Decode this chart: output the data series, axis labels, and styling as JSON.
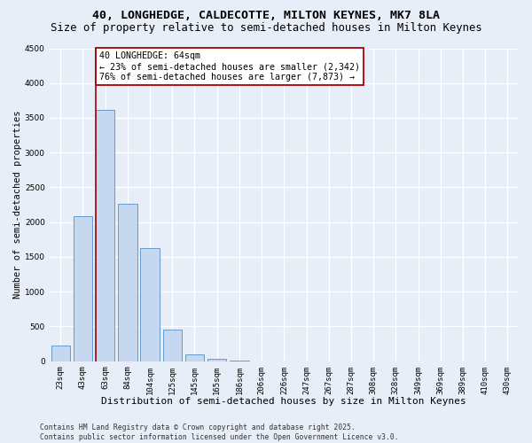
{
  "title": "40, LONGHEDGE, CALDECOTTE, MILTON KEYNES, MK7 8LA",
  "subtitle": "Size of property relative to semi-detached houses in Milton Keynes",
  "xlabel": "Distribution of semi-detached houses by size in Milton Keynes",
  "ylabel": "Number of semi-detached properties",
  "footnote": "Contains HM Land Registry data © Crown copyright and database right 2025.\nContains public sector information licensed under the Open Government Licence v3.0.",
  "annotation_title": "40 LONGHEDGE: 64sqm",
  "annotation_line1": "← 23% of semi-detached houses are smaller (2,342)",
  "annotation_line2": "76% of semi-detached houses are larger (7,873) →",
  "bar_labels": [
    "23sqm",
    "43sqm",
    "63sqm",
    "84sqm",
    "104sqm",
    "125sqm",
    "145sqm",
    "165sqm",
    "186sqm",
    "206sqm",
    "226sqm",
    "247sqm",
    "267sqm",
    "287sqm",
    "308sqm",
    "328sqm",
    "349sqm",
    "369sqm",
    "389sqm",
    "410sqm",
    "430sqm"
  ],
  "bar_values": [
    230,
    2090,
    3620,
    2260,
    1620,
    460,
    100,
    35,
    5,
    0,
    0,
    0,
    0,
    0,
    0,
    0,
    0,
    0,
    0,
    0,
    0
  ],
  "bar_color": "#c5d8f0",
  "bar_edge_color": "#6699cc",
  "vline_color": "#aa0000",
  "vline_x": 1.58,
  "ylim_max": 4500,
  "yticks": [
    0,
    500,
    1000,
    1500,
    2000,
    2500,
    3000,
    3500,
    4000,
    4500
  ],
  "background_color": "#e8eef8",
  "grid_color": "#ffffff",
  "annotation_box_edge": "#aa0000",
  "title_fontsize": 9.5,
  "subtitle_fontsize": 8.8,
  "xlabel_fontsize": 8,
  "ylabel_fontsize": 7.5,
  "tick_fontsize": 6.5,
  "annotation_fontsize": 7.2,
  "footnote_fontsize": 5.8
}
